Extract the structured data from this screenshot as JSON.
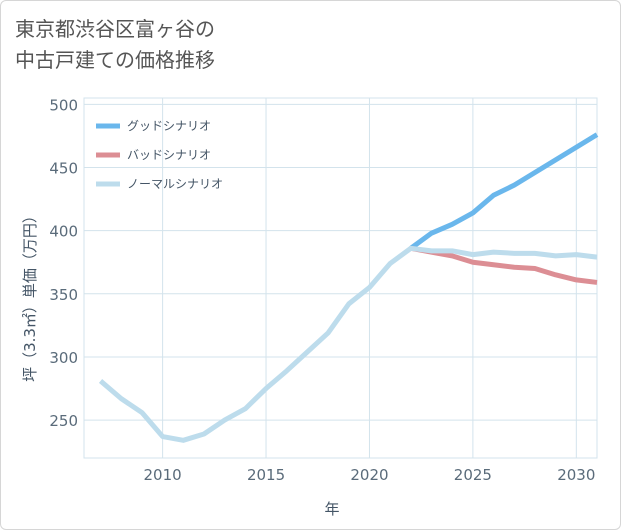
{
  "title": {
    "line1": "東京都渋谷区富ヶ谷の",
    "line2": "中古戸建ての価格推移"
  },
  "chart_data": {
    "type": "line",
    "title": "東京都渋谷区富ヶ谷の中古戸建ての価格推移",
    "xlabel": "年",
    "ylabel": "坪（3.3㎡）単価（万円）",
    "xlim": [
      2006.2,
      2031
    ],
    "ylim": [
      220,
      505
    ],
    "x_ticks": [
      2010,
      2015,
      2020,
      2025,
      2030
    ],
    "y_ticks": [
      250,
      300,
      350,
      400,
      450,
      500
    ],
    "grid": true,
    "legend_position": "top-left",
    "series": [
      {
        "name": "グッドシナリオ",
        "color": "#6ab7ec",
        "x": [
          2022,
          2023,
          2024,
          2025,
          2026,
          2027,
          2028,
          2029,
          2030,
          2031
        ],
        "values": [
          386,
          398,
          405,
          414,
          428,
          436,
          446,
          456,
          466,
          476
        ]
      },
      {
        "name": "バッドシナリオ",
        "color": "#dc8e94",
        "x": [
          2022,
          2023,
          2024,
          2025,
          2026,
          2027,
          2028,
          2029,
          2030,
          2031
        ],
        "values": [
          386,
          383,
          380,
          375,
          373,
          371,
          370,
          365,
          361,
          359
        ]
      },
      {
        "name": "ノーマルシナリオ",
        "color": "#bddcec",
        "x": [
          2007,
          2008,
          2009,
          2010,
          2011,
          2012,
          2013,
          2014,
          2015,
          2016,
          2017,
          2018,
          2019,
          2020,
          2021,
          2022,
          2023,
          2024,
          2025,
          2026,
          2027,
          2028,
          2029,
          2030,
          2031
        ],
        "values": [
          281,
          267,
          256,
          237,
          234,
          239,
          250,
          259,
          275,
          289,
          304,
          319,
          342,
          355,
          374,
          386,
          384,
          384,
          381,
          383,
          382,
          382,
          380,
          381,
          379
        ]
      }
    ]
  }
}
